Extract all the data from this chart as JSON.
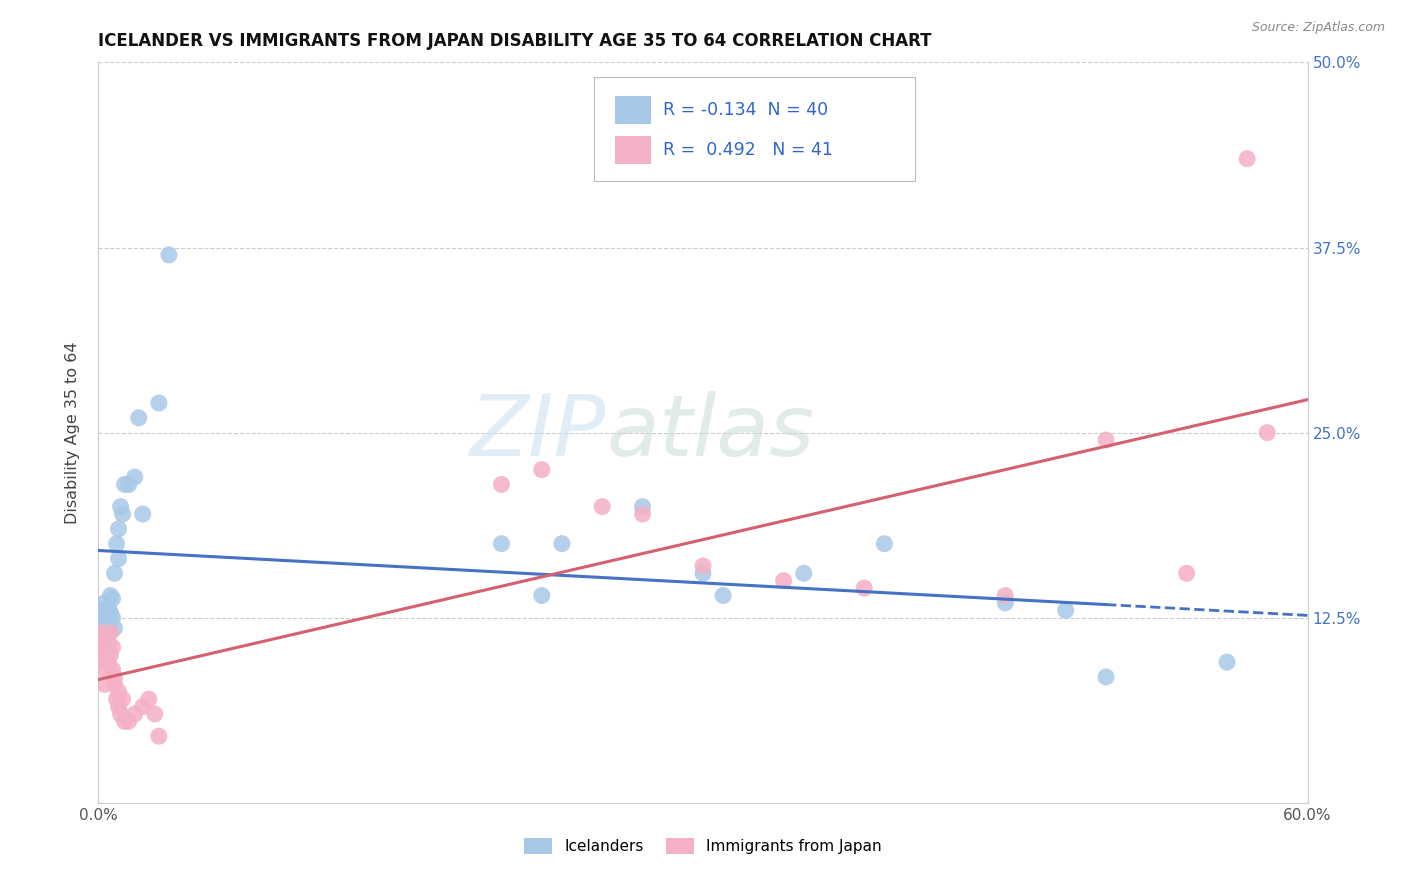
{
  "title": "ICELANDER VS IMMIGRANTS FROM JAPAN DISABILITY AGE 35 TO 64 CORRELATION CHART",
  "source": "Source: ZipAtlas.com",
  "ylabel": "Disability Age 35 to 64",
  "xlim": [
    0.0,
    0.6
  ],
  "ylim": [
    0.0,
    0.5
  ],
  "xtick_vals": [
    0.0,
    0.1,
    0.2,
    0.3,
    0.4,
    0.5,
    0.6
  ],
  "xtick_labels": [
    "0.0%",
    "",
    "",
    "",
    "",
    "",
    "60.0%"
  ],
  "ytick_vals": [
    0.0,
    0.125,
    0.25,
    0.375,
    0.5
  ],
  "right_ytick_vals": [
    0.5,
    0.375,
    0.25,
    0.125
  ],
  "right_ytick_labels": [
    "50.0%",
    "37.5%",
    "25.0%",
    "12.5%"
  ],
  "legend_r_blue": "-0.134",
  "legend_n_blue": "40",
  "legend_r_pink": "0.492",
  "legend_n_pink": "41",
  "legend_label_blue": "Icelanders",
  "legend_label_pink": "Immigrants from Japan",
  "blue_scatter_color": "#a8c8e8",
  "pink_scatter_color": "#f4b0c4",
  "blue_line_color": "#4472c4",
  "pink_line_color": "#d46070",
  "watermark_zip": "ZIP",
  "watermark_atlas": "atlas",
  "blue_x": [
    0.001,
    0.002,
    0.002,
    0.003,
    0.003,
    0.004,
    0.004,
    0.005,
    0.005,
    0.005,
    0.006,
    0.006,
    0.007,
    0.007,
    0.008,
    0.008,
    0.009,
    0.01,
    0.01,
    0.011,
    0.012,
    0.013,
    0.015,
    0.018,
    0.02,
    0.022,
    0.03,
    0.035,
    0.2,
    0.22,
    0.23,
    0.27,
    0.3,
    0.31,
    0.35,
    0.39,
    0.45,
    0.48,
    0.5,
    0.56
  ],
  "blue_y": [
    0.13,
    0.125,
    0.128,
    0.12,
    0.135,
    0.118,
    0.122,
    0.115,
    0.13,
    0.132,
    0.128,
    0.14,
    0.125,
    0.138,
    0.118,
    0.155,
    0.175,
    0.165,
    0.185,
    0.2,
    0.195,
    0.215,
    0.215,
    0.22,
    0.26,
    0.195,
    0.27,
    0.37,
    0.175,
    0.14,
    0.175,
    0.2,
    0.155,
    0.14,
    0.155,
    0.175,
    0.135,
    0.13,
    0.085,
    0.095
  ],
  "pink_x": [
    0.001,
    0.001,
    0.002,
    0.002,
    0.003,
    0.003,
    0.003,
    0.004,
    0.004,
    0.005,
    0.005,
    0.006,
    0.006,
    0.007,
    0.007,
    0.008,
    0.008,
    0.009,
    0.01,
    0.01,
    0.011,
    0.012,
    0.013,
    0.015,
    0.018,
    0.022,
    0.025,
    0.028,
    0.03,
    0.2,
    0.22,
    0.25,
    0.27,
    0.3,
    0.34,
    0.38,
    0.45,
    0.5,
    0.54,
    0.57,
    0.58
  ],
  "pink_y": [
    0.105,
    0.115,
    0.1,
    0.108,
    0.095,
    0.09,
    0.08,
    0.112,
    0.102,
    0.108,
    0.095,
    0.1,
    0.115,
    0.09,
    0.105,
    0.08,
    0.085,
    0.07,
    0.075,
    0.065,
    0.06,
    0.07,
    0.055,
    0.055,
    0.06,
    0.065,
    0.07,
    0.06,
    0.045,
    0.215,
    0.225,
    0.2,
    0.195,
    0.16,
    0.15,
    0.145,
    0.14,
    0.245,
    0.155,
    0.435,
    0.25
  ]
}
